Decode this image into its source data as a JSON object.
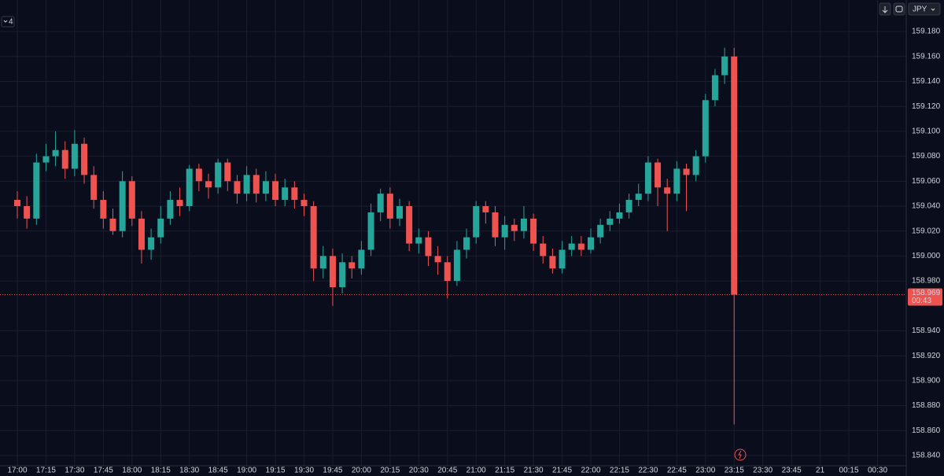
{
  "chart_data": {
    "type": "candlestick",
    "x": [
      "17:00",
      "17:05",
      "17:10",
      "17:15",
      "17:20",
      "17:25",
      "17:30",
      "17:35",
      "17:40",
      "17:45",
      "17:50",
      "17:55",
      "18:00",
      "18:05",
      "18:10",
      "18:15",
      "18:20",
      "18:25",
      "18:30",
      "18:35",
      "18:40",
      "18:45",
      "18:50",
      "18:55",
      "19:00",
      "19:05",
      "19:10",
      "19:15",
      "19:20",
      "19:25",
      "19:30",
      "19:35",
      "19:40",
      "19:45",
      "19:50",
      "19:55",
      "20:00",
      "20:05",
      "20:10",
      "20:15",
      "20:20",
      "20:25",
      "20:30",
      "20:35",
      "20:40",
      "20:45",
      "20:50",
      "20:55",
      "21:00",
      "21:05",
      "21:10",
      "21:15",
      "21:20",
      "21:25",
      "21:30",
      "21:35",
      "21:40",
      "21:45",
      "21:50",
      "21:55",
      "22:00",
      "22:05",
      "22:10",
      "22:15",
      "22:20",
      "22:25",
      "22:30",
      "22:35",
      "22:40",
      "22:45",
      "22:50",
      "22:55",
      "23:00",
      "23:05",
      "23:10",
      "23:15"
    ],
    "open": [
      159.045,
      159.04,
      159.03,
      159.075,
      159.08,
      159.085,
      159.07,
      159.09,
      159.065,
      159.045,
      159.03,
      159.02,
      159.06,
      159.03,
      159.005,
      159.015,
      159.03,
      159.045,
      159.04,
      159.07,
      159.06,
      159.055,
      159.075,
      159.06,
      159.05,
      159.065,
      159.05,
      159.06,
      159.045,
      159.055,
      159.045,
      159.04,
      158.99,
      159.0,
      158.975,
      158.995,
      158.99,
      159.005,
      159.035,
      159.05,
      159.03,
      159.04,
      159.01,
      159.015,
      159.0,
      158.995,
      158.98,
      159.005,
      159.015,
      159.04,
      159.035,
      159.015,
      159.025,
      159.02,
      159.03,
      159.01,
      159.0,
      158.99,
      159.005,
      159.01,
      159.005,
      159.015,
      159.025,
      159.03,
      159.035,
      159.045,
      159.05,
      159.075,
      159.055,
      159.05,
      159.07,
      159.065,
      159.08,
      159.125,
      159.145,
      159.16
    ],
    "high": [
      159.052,
      159.048,
      159.082,
      159.09,
      159.1,
      159.092,
      159.101,
      159.095,
      159.072,
      159.052,
      159.038,
      159.068,
      159.064,
      159.036,
      159.022,
      159.04,
      159.052,
      159.055,
      159.073,
      159.074,
      159.066,
      159.078,
      159.078,
      159.065,
      159.072,
      159.07,
      159.068,
      159.066,
      159.062,
      159.06,
      159.05,
      159.044,
      159.008,
      159.006,
      159.002,
      159.0,
      159.012,
      159.042,
      159.054,
      159.055,
      159.046,
      159.044,
      159.022,
      159.02,
      159.008,
      159.0,
      159.012,
      159.022,
      159.044,
      159.044,
      159.04,
      159.032,
      159.03,
      159.04,
      159.034,
      159.016,
      159.006,
      159.012,
      159.016,
      159.016,
      159.022,
      159.03,
      159.036,
      159.042,
      159.05,
      159.058,
      159.08,
      159.078,
      159.062,
      159.076,
      159.074,
      159.085,
      159.13,
      159.15,
      159.167,
      159.167
    ],
    "low": [
      159.03,
      159.022,
      159.025,
      159.068,
      159.072,
      159.062,
      159.064,
      159.058,
      159.038,
      159.022,
      159.017,
      159.015,
      159.024,
      158.994,
      158.997,
      159.01,
      159.025,
      159.032,
      159.036,
      159.052,
      159.046,
      159.05,
      159.052,
      159.042,
      159.044,
      159.043,
      159.044,
      159.04,
      159.04,
      159.038,
      159.032,
      158.98,
      158.982,
      158.96,
      158.97,
      158.982,
      158.985,
      159.0,
      159.028,
      159.022,
      159.024,
      159.004,
      159.002,
      158.992,
      158.985,
      158.966,
      158.976,
      158.998,
      159.01,
      159.026,
      159.008,
      159.005,
      159.012,
      159.014,
      159.004,
      158.994,
      158.986,
      158.986,
      159.0,
      159.0,
      159.002,
      159.01,
      159.02,
      159.026,
      159.03,
      159.04,
      159.044,
      159.04,
      159.02,
      159.044,
      159.036,
      159.06,
      159.075,
      159.12,
      159.138,
      158.865
    ],
    "close": [
      159.04,
      159.03,
      159.075,
      159.08,
      159.085,
      159.07,
      159.09,
      159.065,
      159.045,
      159.03,
      159.02,
      159.06,
      159.03,
      159.005,
      159.015,
      159.03,
      159.045,
      159.04,
      159.07,
      159.06,
      159.055,
      159.075,
      159.06,
      159.05,
      159.065,
      159.05,
      159.06,
      159.045,
      159.055,
      159.045,
      159.04,
      158.99,
      159.0,
      158.975,
      158.995,
      158.99,
      159.005,
      159.035,
      159.05,
      159.03,
      159.04,
      159.01,
      159.015,
      159.0,
      158.995,
      158.98,
      159.005,
      159.015,
      159.04,
      159.035,
      159.015,
      159.025,
      159.02,
      159.03,
      159.01,
      159.0,
      158.99,
      159.005,
      159.01,
      159.005,
      159.015,
      159.025,
      159.03,
      159.035,
      159.045,
      159.05,
      159.075,
      159.055,
      159.05,
      159.07,
      159.065,
      159.08,
      159.125,
      159.145,
      159.16,
      158.969
    ],
    "up_color": "#26a69a",
    "down_color": "#ef5350",
    "xticks": [
      {
        "value": 0,
        "label": "17:00"
      },
      {
        "value": 3,
        "label": "17:15"
      },
      {
        "value": 6,
        "label": "17:30"
      },
      {
        "value": 9,
        "label": "17:45"
      },
      {
        "value": 12,
        "label": "18:00"
      },
      {
        "value": 15,
        "label": "18:15"
      },
      {
        "value": 18,
        "label": "18:30"
      },
      {
        "value": 21,
        "label": "18:45"
      },
      {
        "value": 24,
        "label": "19:00"
      },
      {
        "value": 27,
        "label": "19:15"
      },
      {
        "value": 30,
        "label": "19:30"
      },
      {
        "value": 33,
        "label": "19:45"
      },
      {
        "value": 36,
        "label": "20:00"
      },
      {
        "value": 39,
        "label": "20:15"
      },
      {
        "value": 42,
        "label": "20:30"
      },
      {
        "value": 45,
        "label": "20:45"
      },
      {
        "value": 48,
        "label": "21:00"
      },
      {
        "value": 51,
        "label": "21:15"
      },
      {
        "value": 54,
        "label": "21:30"
      },
      {
        "value": 57,
        "label": "21:45"
      },
      {
        "value": 60,
        "label": "22:00"
      },
      {
        "value": 63,
        "label": "22:15"
      },
      {
        "value": 66,
        "label": "22:30"
      },
      {
        "value": 69,
        "label": "22:45"
      },
      {
        "value": 72,
        "label": "23:00"
      },
      {
        "value": 75,
        "label": "23:15"
      },
      {
        "value": 78,
        "label": "23:30"
      },
      {
        "value": 81,
        "label": "23:45"
      },
      {
        "value": 84,
        "label": "21"
      },
      {
        "value": 87,
        "label": "00:15"
      },
      {
        "value": 90,
        "label": "00:30"
      }
    ],
    "ylim": [
      158.8318,
      159.2053
    ],
    "yticks": [
      {
        "value": 158.84,
        "label": "158.840"
      },
      {
        "value": 158.86,
        "label": "158.860"
      },
      {
        "value": 158.88,
        "label": "158.880"
      },
      {
        "value": 158.9,
        "label": "158.900"
      },
      {
        "value": 158.92,
        "label": "158.920"
      },
      {
        "value": 158.94,
        "label": "158.940"
      },
      {
        "value": 158.98,
        "label": "158.980"
      },
      {
        "value": 159,
        "label": "159.000"
      },
      {
        "value": 159.02,
        "label": "159.020"
      },
      {
        "value": 159.04,
        "label": "159.040"
      },
      {
        "value": 159.06,
        "label": "159.060"
      },
      {
        "value": 159.08,
        "label": "159.080"
      },
      {
        "value": 159.1,
        "label": "159.100"
      },
      {
        "value": 159.12,
        "label": "159.120"
      },
      {
        "value": 159.14,
        "label": "159.140"
      },
      {
        "value": 159.16,
        "label": "159.160"
      },
      {
        "value": 159.18,
        "label": "159.180"
      }
    ],
    "grid": true,
    "last_price": {
      "value": 158.969,
      "label": "158.969"
    },
    "countdown": "00:43"
  },
  "ui": {
    "collapse_count": "4",
    "currency": "JPY"
  }
}
